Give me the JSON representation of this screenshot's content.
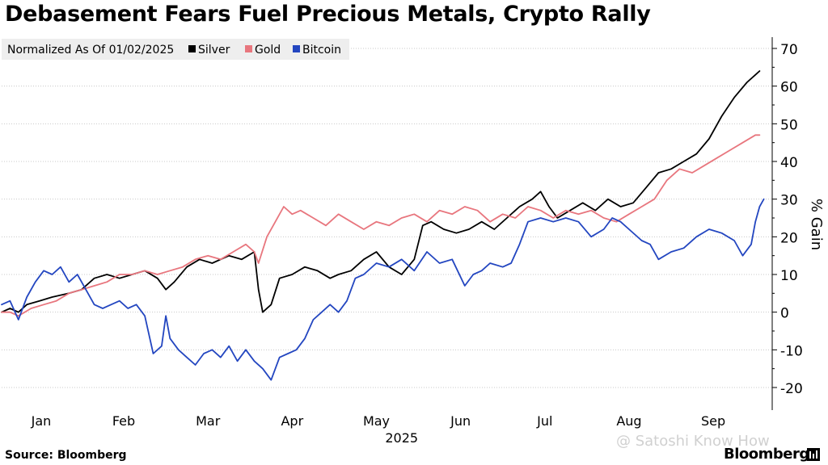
{
  "page": {
    "title": "Debasement Fears Fuel Precious Metals, Crypto Rally",
    "source": "Source: Bloomberg",
    "brand": "Bloomberg",
    "watermark": "@ Satoshi Know How"
  },
  "colors": {
    "silver": "#000000",
    "gold": "#e8767e",
    "bitcoin": "#2346c0",
    "grid": "#c8c8c8",
    "legend_bg": "#eeeeee"
  },
  "chart_data": {
    "type": "line",
    "title": "Debasement Fears Fuel Precious Metals, Crypto Rally",
    "legend_title": "Normalized As Of 01/02/2025",
    "ylabel": "% Gain",
    "xlabel": "2025",
    "ylim": [
      -26,
      73
    ],
    "yticks": [
      70,
      60,
      50,
      40,
      30,
      20,
      10,
      0,
      -10,
      -20
    ],
    "xlim": [
      0,
      9.15
    ],
    "x_categories": [
      "Jan",
      "Feb",
      "Mar",
      "Apr",
      "May",
      "Jun",
      "Jul",
      "Aug",
      "Sep"
    ],
    "x_category_positions": [
      0.47,
      1.45,
      2.45,
      3.45,
      4.45,
      5.45,
      6.45,
      7.45,
      8.45
    ],
    "year_label": "2025",
    "year_label_position": 4.75,
    "grid": true,
    "legend_position": "top-left",
    "series": [
      {
        "name": "Silver",
        "color_key": "silver",
        "points": [
          [
            0.0,
            0
          ],
          [
            0.1,
            1
          ],
          [
            0.2,
            0
          ],
          [
            0.3,
            2
          ],
          [
            0.45,
            3
          ],
          [
            0.6,
            4
          ],
          [
            0.8,
            5
          ],
          [
            0.95,
            6
          ],
          [
            1.1,
            9
          ],
          [
            1.25,
            10
          ],
          [
            1.4,
            9
          ],
          [
            1.55,
            10
          ],
          [
            1.7,
            11
          ],
          [
            1.85,
            9
          ],
          [
            1.95,
            6
          ],
          [
            2.05,
            8
          ],
          [
            2.2,
            12
          ],
          [
            2.35,
            14
          ],
          [
            2.5,
            13
          ],
          [
            2.7,
            15
          ],
          [
            2.85,
            14
          ],
          [
            3.0,
            16
          ],
          [
            3.05,
            6
          ],
          [
            3.1,
            0
          ],
          [
            3.2,
            2
          ],
          [
            3.3,
            9
          ],
          [
            3.45,
            10
          ],
          [
            3.6,
            12
          ],
          [
            3.75,
            11
          ],
          [
            3.9,
            9
          ],
          [
            4.0,
            10
          ],
          [
            4.15,
            11
          ],
          [
            4.3,
            14
          ],
          [
            4.45,
            16
          ],
          [
            4.6,
            12
          ],
          [
            4.75,
            10
          ],
          [
            4.9,
            14
          ],
          [
            5.0,
            23
          ],
          [
            5.1,
            24
          ],
          [
            5.25,
            22
          ],
          [
            5.4,
            21
          ],
          [
            5.55,
            22
          ],
          [
            5.7,
            24
          ],
          [
            5.85,
            22
          ],
          [
            6.0,
            25
          ],
          [
            6.15,
            28
          ],
          [
            6.3,
            30
          ],
          [
            6.4,
            32
          ],
          [
            6.5,
            28
          ],
          [
            6.6,
            25
          ],
          [
            6.75,
            27
          ],
          [
            6.9,
            29
          ],
          [
            7.05,
            27
          ],
          [
            7.2,
            30
          ],
          [
            7.35,
            28
          ],
          [
            7.5,
            29
          ],
          [
            7.65,
            33
          ],
          [
            7.8,
            37
          ],
          [
            7.95,
            38
          ],
          [
            8.1,
            40
          ],
          [
            8.25,
            42
          ],
          [
            8.4,
            46
          ],
          [
            8.55,
            52
          ],
          [
            8.7,
            57
          ],
          [
            8.85,
            61
          ],
          [
            8.95,
            63
          ],
          [
            9.0,
            64
          ]
        ]
      },
      {
        "name": "Gold",
        "color_key": "gold",
        "points": [
          [
            0.0,
            0
          ],
          [
            0.1,
            0
          ],
          [
            0.2,
            -1
          ],
          [
            0.35,
            1
          ],
          [
            0.5,
            2
          ],
          [
            0.65,
            3
          ],
          [
            0.8,
            5
          ],
          [
            0.95,
            6
          ],
          [
            1.1,
            7
          ],
          [
            1.25,
            8
          ],
          [
            1.4,
            10
          ],
          [
            1.55,
            10
          ],
          [
            1.7,
            11
          ],
          [
            1.85,
            10
          ],
          [
            2.0,
            11
          ],
          [
            2.15,
            12
          ],
          [
            2.3,
            14
          ],
          [
            2.45,
            15
          ],
          [
            2.6,
            14
          ],
          [
            2.75,
            16
          ],
          [
            2.9,
            18
          ],
          [
            3.0,
            16
          ],
          [
            3.05,
            13
          ],
          [
            3.15,
            20
          ],
          [
            3.25,
            24
          ],
          [
            3.35,
            28
          ],
          [
            3.45,
            26
          ],
          [
            3.55,
            27
          ],
          [
            3.7,
            25
          ],
          [
            3.85,
            23
          ],
          [
            4.0,
            26
          ],
          [
            4.15,
            24
          ],
          [
            4.3,
            22
          ],
          [
            4.45,
            24
          ],
          [
            4.6,
            23
          ],
          [
            4.75,
            25
          ],
          [
            4.9,
            26
          ],
          [
            5.05,
            24
          ],
          [
            5.2,
            27
          ],
          [
            5.35,
            26
          ],
          [
            5.5,
            28
          ],
          [
            5.65,
            27
          ],
          [
            5.8,
            24
          ],
          [
            5.95,
            26
          ],
          [
            6.1,
            25
          ],
          [
            6.25,
            28
          ],
          [
            6.4,
            27
          ],
          [
            6.55,
            25
          ],
          [
            6.7,
            27
          ],
          [
            6.85,
            26
          ],
          [
            7.0,
            27
          ],
          [
            7.15,
            25
          ],
          [
            7.3,
            24
          ],
          [
            7.45,
            26
          ],
          [
            7.6,
            28
          ],
          [
            7.75,
            30
          ],
          [
            7.9,
            35
          ],
          [
            8.05,
            38
          ],
          [
            8.2,
            37
          ],
          [
            8.35,
            39
          ],
          [
            8.5,
            41
          ],
          [
            8.65,
            43
          ],
          [
            8.8,
            45
          ],
          [
            8.95,
            47
          ],
          [
            9.0,
            47
          ]
        ]
      },
      {
        "name": "Bitcoin",
        "color_key": "bitcoin",
        "points": [
          [
            0.0,
            2
          ],
          [
            0.1,
            3
          ],
          [
            0.2,
            -2
          ],
          [
            0.3,
            4
          ],
          [
            0.4,
            8
          ],
          [
            0.5,
            11
          ],
          [
            0.6,
            10
          ],
          [
            0.7,
            12
          ],
          [
            0.8,
            8
          ],
          [
            0.9,
            10
          ],
          [
            1.0,
            6
          ],
          [
            1.1,
            2
          ],
          [
            1.2,
            1
          ],
          [
            1.3,
            2
          ],
          [
            1.4,
            3
          ],
          [
            1.5,
            1
          ],
          [
            1.6,
            2
          ],
          [
            1.7,
            -1
          ],
          [
            1.8,
            -11
          ],
          [
            1.9,
            -9
          ],
          [
            1.95,
            -1
          ],
          [
            2.0,
            -7
          ],
          [
            2.1,
            -10
          ],
          [
            2.2,
            -12
          ],
          [
            2.3,
            -14
          ],
          [
            2.4,
            -11
          ],
          [
            2.5,
            -10
          ],
          [
            2.6,
            -12
          ],
          [
            2.7,
            -9
          ],
          [
            2.8,
            -13
          ],
          [
            2.9,
            -10
          ],
          [
            3.0,
            -13
          ],
          [
            3.1,
            -15
          ],
          [
            3.2,
            -18
          ],
          [
            3.3,
            -12
          ],
          [
            3.4,
            -11
          ],
          [
            3.5,
            -10
          ],
          [
            3.6,
            -7
          ],
          [
            3.7,
            -2
          ],
          [
            3.8,
            0
          ],
          [
            3.9,
            2
          ],
          [
            4.0,
            0
          ],
          [
            4.1,
            3
          ],
          [
            4.2,
            9
          ],
          [
            4.3,
            10
          ],
          [
            4.45,
            13
          ],
          [
            4.6,
            12
          ],
          [
            4.75,
            14
          ],
          [
            4.9,
            11
          ],
          [
            5.05,
            16
          ],
          [
            5.2,
            13
          ],
          [
            5.35,
            14
          ],
          [
            5.5,
            7
          ],
          [
            5.6,
            10
          ],
          [
            5.7,
            11
          ],
          [
            5.8,
            13
          ],
          [
            5.95,
            12
          ],
          [
            6.05,
            13
          ],
          [
            6.15,
            18
          ],
          [
            6.25,
            24
          ],
          [
            6.4,
            25
          ],
          [
            6.55,
            24
          ],
          [
            6.7,
            25
          ],
          [
            6.85,
            24
          ],
          [
            7.0,
            20
          ],
          [
            7.15,
            22
          ],
          [
            7.25,
            25
          ],
          [
            7.35,
            24
          ],
          [
            7.45,
            22
          ],
          [
            7.6,
            19
          ],
          [
            7.7,
            18
          ],
          [
            7.8,
            14
          ],
          [
            7.95,
            16
          ],
          [
            8.1,
            17
          ],
          [
            8.25,
            20
          ],
          [
            8.4,
            22
          ],
          [
            8.55,
            21
          ],
          [
            8.7,
            19
          ],
          [
            8.8,
            15
          ],
          [
            8.9,
            18
          ],
          [
            8.95,
            24
          ],
          [
            9.0,
            28
          ],
          [
            9.05,
            30
          ]
        ]
      }
    ]
  }
}
